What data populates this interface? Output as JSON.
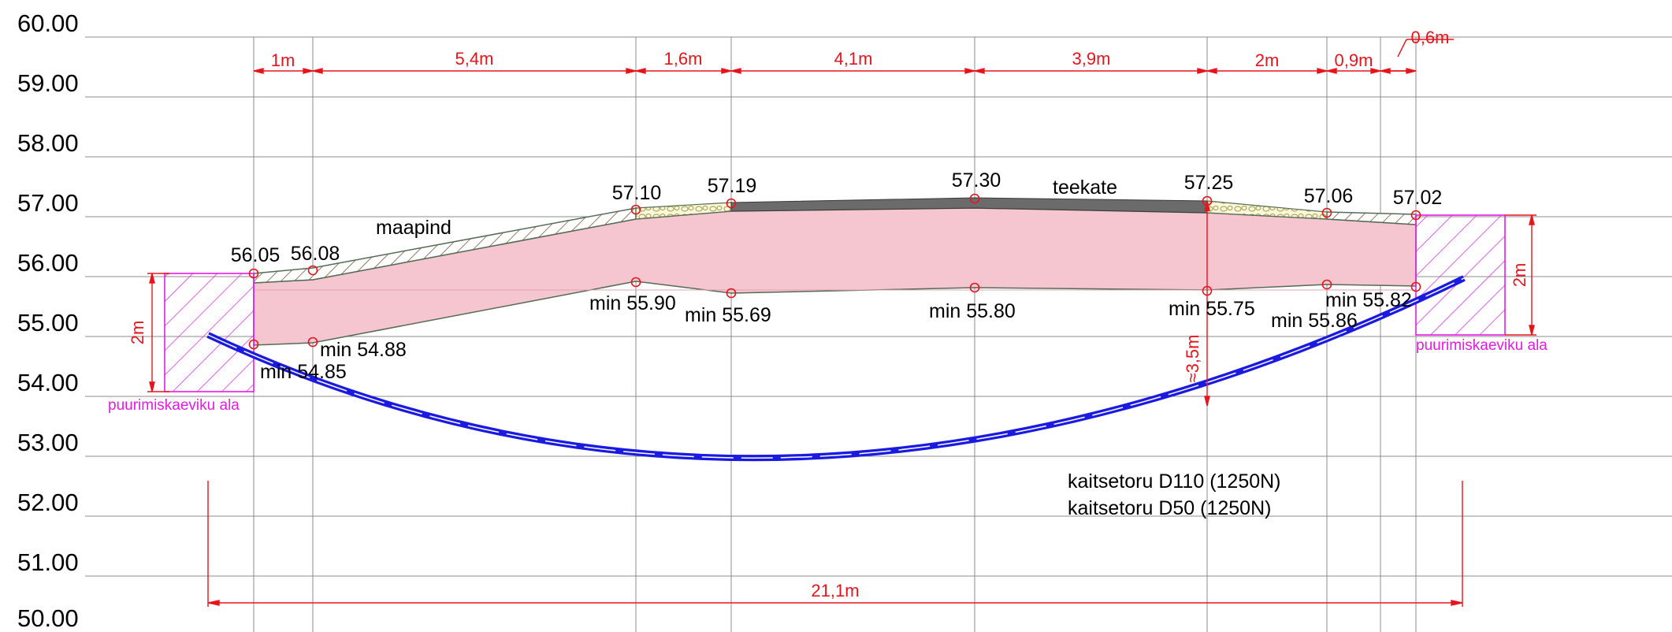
{
  "y_axis_labels": [
    "60.00",
    "59.00",
    "58.00",
    "57.00",
    "56.00",
    "55.00",
    "54.00",
    "53.00",
    "52.00",
    "51.00",
    "50.00"
  ],
  "top_dimensions": [
    "1m",
    "5,4m",
    "1,6m",
    "4,1m",
    "3,9m",
    "2m",
    "0,9m",
    "0,6m"
  ],
  "total_dimension": "21,1m",
  "surface_elevations": [
    "56.05",
    "56.08",
    "57.10",
    "57.19",
    "57.30",
    "57.25",
    "57.06",
    "57.02"
  ],
  "min_elevations": [
    "min 54.85",
    "min 54.88",
    "min 55.90",
    "min 55.69",
    "min 55.80",
    "min 55.75",
    "min 55.86",
    "min 55.82"
  ],
  "labels": {
    "ground": "maapind",
    "road_surface": "teekate",
    "depth": "≈3,5m",
    "pit_height_left": "2m",
    "pit_height_right": "2m",
    "drill_area_left": "puurimiskaeviku ala",
    "drill_area_right": "puurimiskaeviku ala",
    "pipe_1": "kaitsetoru D110 (1250N)",
    "pipe_2": "kaitsetoru D50 (1250N)"
  },
  "colors": {
    "dimension": "#e8141b",
    "pipe": "#1a1ae0",
    "drill_zone": "#e619e6",
    "fill_zone": "#f5c6d0",
    "road": "#6b6b6b",
    "grid": "#8c8c8c"
  }
}
